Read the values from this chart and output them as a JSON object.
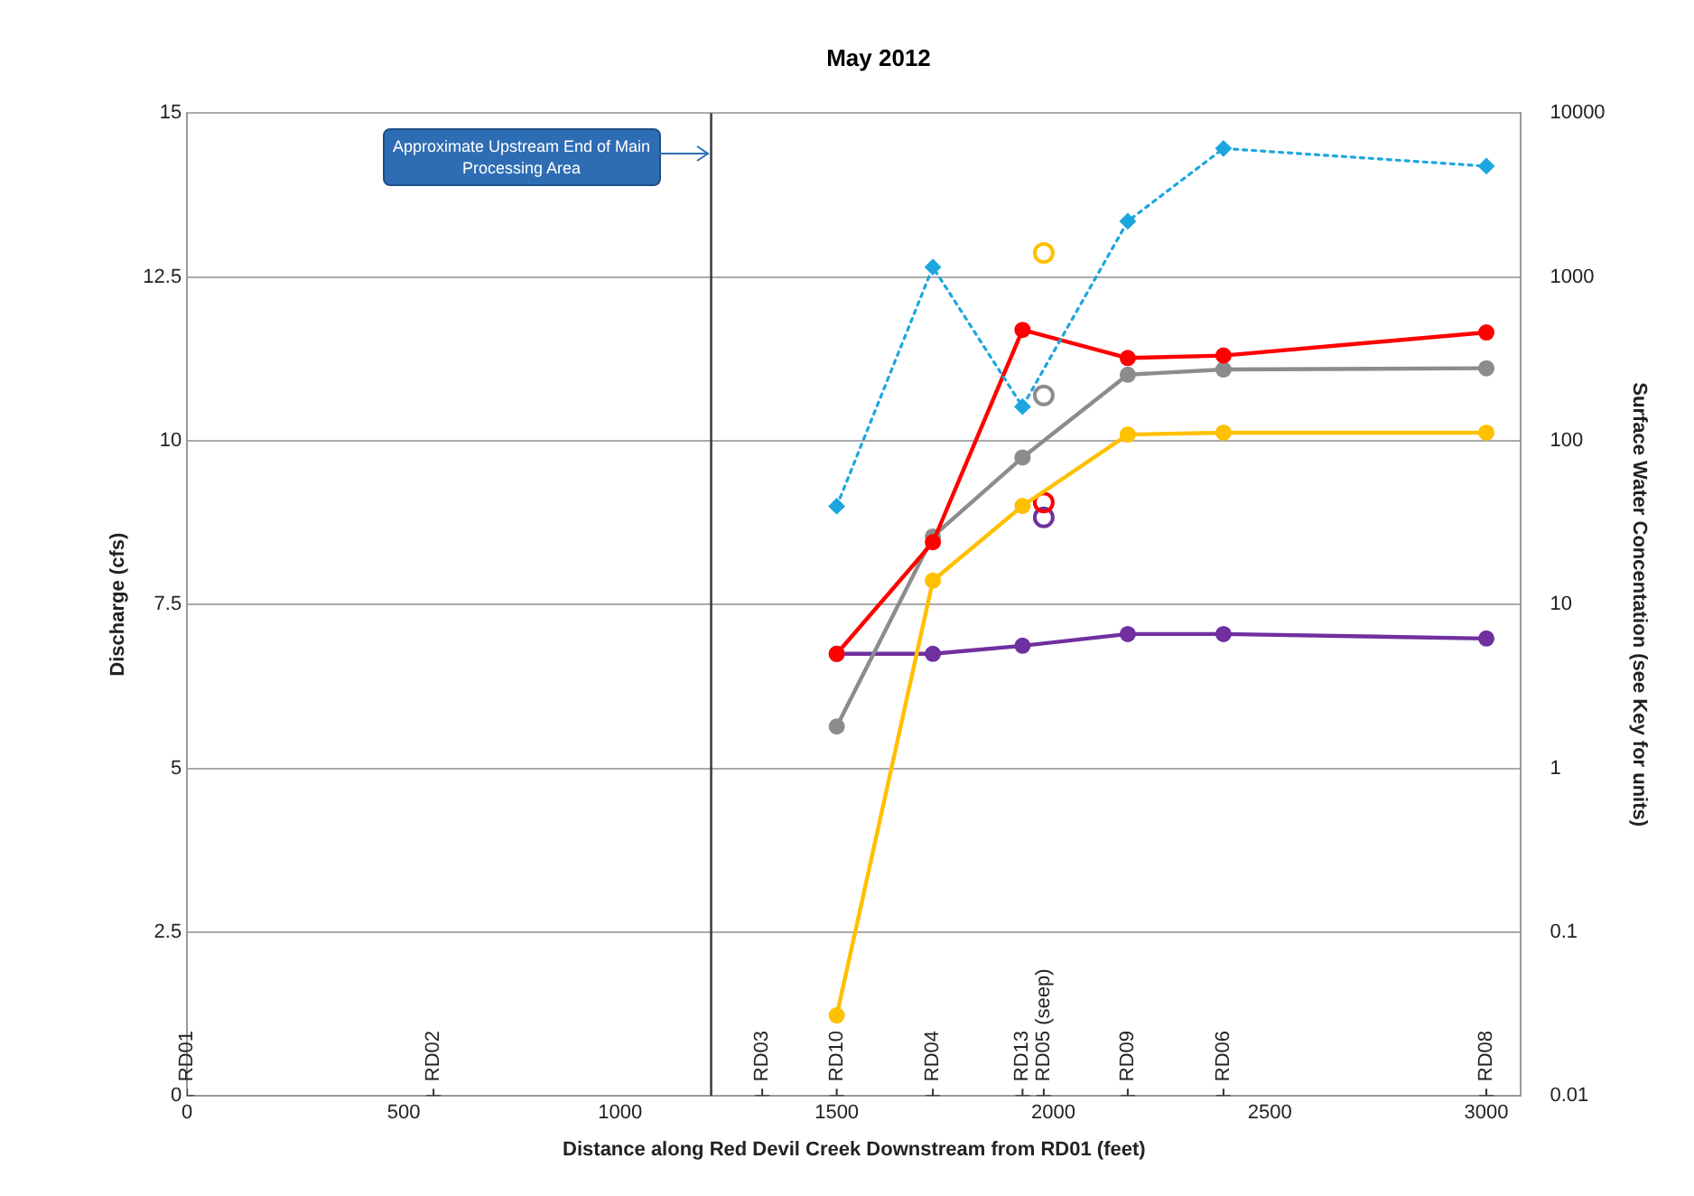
{
  "chart_data": {
    "type": "line",
    "title": "May 2012",
    "xlabel": "Distance along Red Devil Creek Downstream from RD01 (feet)",
    "ylabel": "Discharge (cfs)",
    "y2label": "Surface Water Concentation (see Key for units)",
    "xlim": [
      0,
      3080
    ],
    "xticks": [
      0,
      500,
      1000,
      1500,
      2000,
      2500,
      3000
    ],
    "ylim": [
      0,
      15
    ],
    "yticks": [
      0,
      2.5,
      5,
      7.5,
      10,
      12.5,
      15
    ],
    "y2lim": [
      0.01,
      10000
    ],
    "y2ticks": [
      0.01,
      0.1,
      1,
      10,
      100,
      1000,
      10000
    ],
    "log": "y2",
    "grid": "y",
    "legend": false,
    "series": [
      {
        "type": "line",
        "color": "#1ca6df",
        "x": [
          1500,
          1722,
          1929,
          2172,
          2393,
          3000
        ],
        "values": [
          9.0,
          12.65,
          10.52,
          13.35,
          14.46,
          14.19
        ],
        "axis": "y",
        "marker": "diamond",
        "line_style": "dotted"
      },
      {
        "type": "line",
        "color": "#ff0000",
        "x": [
          1500,
          1722,
          1929,
          2172,
          2393,
          3000
        ],
        "values": [
          5.0,
          24,
          475,
          320,
          331,
          458
        ],
        "axis": "y2",
        "marker": "circle",
        "line_style": "solid"
      },
      {
        "type": "line",
        "color": "#8c8c8c",
        "x": [
          1500,
          1722,
          1929,
          2172,
          2393,
          3000
        ],
        "values": [
          1.8,
          26,
          79,
          253,
          272,
          277
        ],
        "axis": "y2",
        "marker": "circle",
        "line_style": "solid"
      },
      {
        "type": "line",
        "color": "#ffc000",
        "x": [
          1500,
          1722,
          1929,
          2172,
          2393,
          3000
        ],
        "values": [
          0.031,
          14,
          40,
          109,
          112,
          112
        ],
        "axis": "y2",
        "marker": "circle",
        "line_style": "solid"
      },
      {
        "type": "line",
        "color": "#7030a0",
        "x": [
          1500,
          1722,
          1929,
          2172,
          2393,
          3000
        ],
        "values": [
          5.0,
          5.0,
          5.6,
          6.6,
          6.6,
          6.2
        ],
        "axis": "y2",
        "marker": "circle",
        "line_style": "solid"
      },
      {
        "type": "scatter",
        "color": "#ffc000",
        "x": [
          1978
        ],
        "values": [
          1400
        ],
        "axis": "y2",
        "marker": "circle"
      },
      {
        "type": "scatter",
        "color": "#8c8c8c",
        "x": [
          1978
        ],
        "values": [
          189
        ],
        "axis": "y2",
        "marker": "circle"
      },
      {
        "type": "scatter",
        "color": "#ff0000",
        "x": [
          1978
        ],
        "values": [
          42
        ],
        "axis": "y2",
        "marker": "circle"
      },
      {
        "type": "scatter",
        "color": "#7030a0",
        "x": [
          1978
        ],
        "values": [
          34
        ],
        "axis": "y2",
        "marker": "circle"
      },
      {
        "type": "scatter",
        "color": "#333333",
        "x": [
          0,
          569,
          1328,
          1500,
          1722,
          1929,
          1978,
          2172,
          2393,
          3000
        ],
        "values": [
          0,
          0,
          0,
          0,
          0,
          0,
          0,
          0,
          0,
          0
        ],
        "axis": "y",
        "marker": "cross"
      }
    ],
    "ref_lines": [
      {
        "axis": "x",
        "value": 1210,
        "label": "Approximate Upstream End of Main Processing Area",
        "color": "#404040"
      }
    ],
    "annotations": [
      {
        "text": "RD01",
        "x": 0,
        "y": 0
      },
      {
        "text": "RD02",
        "x": 569,
        "y": 0
      },
      {
        "text": "RD03",
        "x": 1328,
        "y": 0
      },
      {
        "text": "RD10",
        "x": 1500,
        "y": 0
      },
      {
        "text": "RD04",
        "x": 1722,
        "y": 0
      },
      {
        "text": "RD13",
        "x": 1929,
        "y": 0
      },
      {
        "text": "RD05 (seep)",
        "x": 1978,
        "y": 0
      },
      {
        "text": "RD09",
        "x": 2172,
        "y": 0
      },
      {
        "text": "RD06",
        "x": 2393,
        "y": 0
      },
      {
        "text": "RD08",
        "x": 3000,
        "y": 0
      }
    ]
  }
}
